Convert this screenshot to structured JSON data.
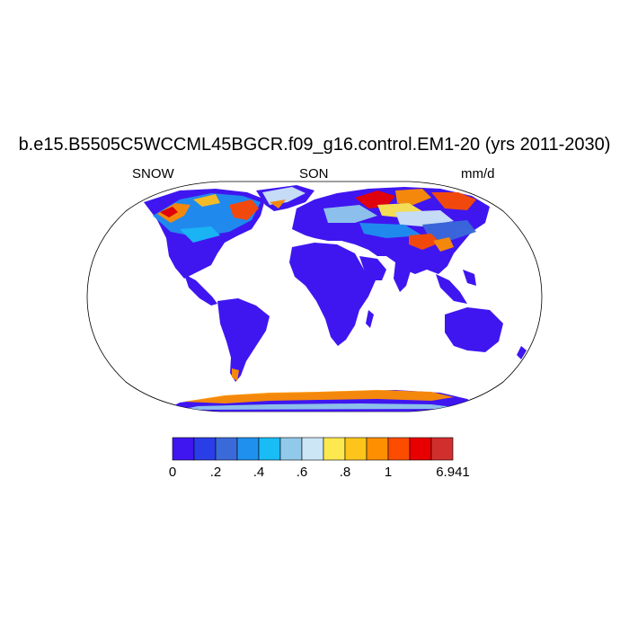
{
  "title": "b.e15.B5505C5WCCML45BGCR.f09_g16.control.EM1-20 (yrs 2011-2030)",
  "left_label": "SNOW",
  "center_label": "SON",
  "right_label": "mm/d",
  "colorbar": {
    "colors": [
      "#3f16f0",
      "#2a3ee8",
      "#3a6ad9",
      "#1f90ee",
      "#19bcf5",
      "#91c9ea",
      "#cde6f6",
      "#fde84f",
      "#fdc51c",
      "#fd8f00",
      "#fb4c00",
      "#e80000",
      "#d12e2e"
    ],
    "tick_labels": [
      {
        "index": 0,
        "text": "0"
      },
      {
        "index": 2,
        "text": ".2"
      },
      {
        "index": 4,
        "text": ".4"
      },
      {
        "index": 6,
        "text": ".6"
      },
      {
        "index": 8,
        "text": ".8"
      },
      {
        "index": 10,
        "text": "1"
      },
      {
        "index": 13,
        "text": "6.941"
      }
    ]
  },
  "map": {
    "projection": "Robinson",
    "ocean_color": "#ffffff",
    "land_base_color": "#3f16f0"
  }
}
